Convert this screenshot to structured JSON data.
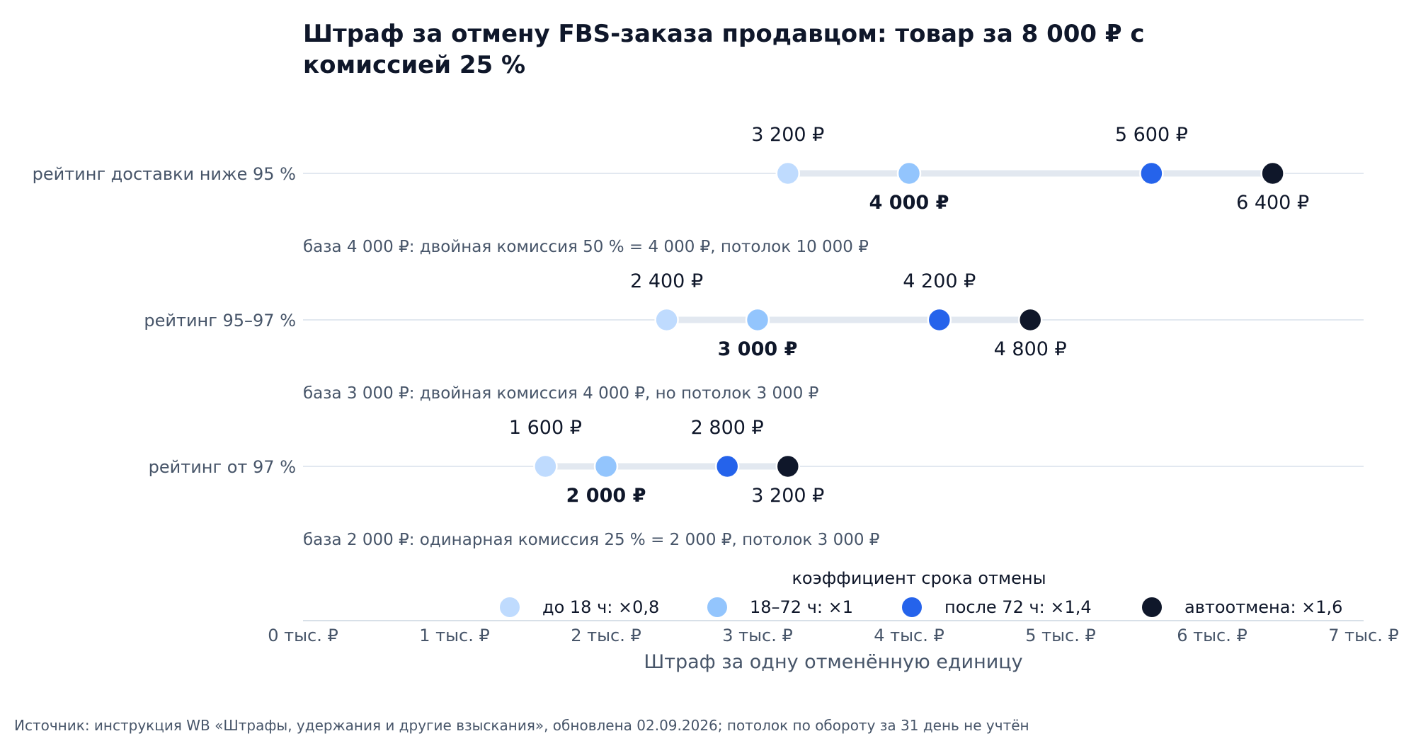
{
  "chart_data": {
    "type": "scatter",
    "title": "Штраф за отмену FBS-заказа продавцом: товар за 8 000 ₽ с комиссией 25 %",
    "title_lines": [
      "Штраф за отмену FBS-заказа продавцом: товар за 8 000 ₽ с",
      "комиссией 25 %"
    ],
    "xlabel": "Штраф за одну отменённую единицу",
    "xlim": [
      0,
      7000
    ],
    "x_ticks": [
      {
        "value": 0,
        "label": "0 тыс. ₽"
      },
      {
        "value": 1000,
        "label": "1 тыс. ₽"
      },
      {
        "value": 2000,
        "label": "2 тыс. ₽"
      },
      {
        "value": 3000,
        "label": "3 тыс. ₽"
      },
      {
        "value": 4000,
        "label": "4 тыс. ₽"
      },
      {
        "value": 5000,
        "label": "5 тыс. ₽"
      },
      {
        "value": 6000,
        "label": "6 тыс. ₽"
      },
      {
        "value": 7000,
        "label": "7 тыс. ₽"
      }
    ],
    "legend": {
      "title": "коэффициент срока отмены",
      "placement": "bottom-center",
      "items": [
        {
          "label": "до 18 ч: ×0,8",
          "color": "#bfdbfe"
        },
        {
          "label": "18–72 ч: ×1",
          "color": "#93c5fd"
        },
        {
          "label": "после 72 ч: ×1,4",
          "color": "#2563eb"
        },
        {
          "label": "автоотмена: ×1,6",
          "color": "#0f172a"
        }
      ]
    },
    "categories": [
      {
        "label": "рейтинг доставки ниже 95 %",
        "note": "база 4 000 ₽: двойная комиссия 50 % = 4 000 ₽, потолок 10 000 ₽",
        "points": [
          {
            "x": 3200,
            "label": "3 200 ₽"
          },
          {
            "x": 4000,
            "label": "4 000 ₽"
          },
          {
            "x": 5600,
            "label": "5 600 ₽"
          },
          {
            "x": 6400,
            "label": "6 400 ₽"
          }
        ]
      },
      {
        "label": "рейтинг 95–97 %",
        "note": "база 3 000 ₽: двойная комиссия 4 000 ₽, но потолок 3 000 ₽",
        "points": [
          {
            "x": 2400,
            "label": "2 400 ₽"
          },
          {
            "x": 3000,
            "label": "3 000 ₽"
          },
          {
            "x": 4200,
            "label": "4 200 ₽"
          },
          {
            "x": 4800,
            "label": "4 800 ₽"
          }
        ]
      },
      {
        "label": "рейтинг от 97 %",
        "note": "база 2 000 ₽: одинарная комиссия 25 % = 2 000 ₽, потолок 3 000 ₽",
        "points": [
          {
            "x": 1600,
            "label": "1 600 ₽"
          },
          {
            "x": 2000,
            "label": "2 000 ₽"
          },
          {
            "x": 2800,
            "label": "2 800 ₽"
          },
          {
            "x": 3200,
            "label": "3 200 ₽"
          }
        ]
      }
    ],
    "source": "Источник: инструкция WB «Штрафы, удержания и другие взыскания», обновлена 02.09.2026; потолок по обороту за 31 день не учтён"
  }
}
